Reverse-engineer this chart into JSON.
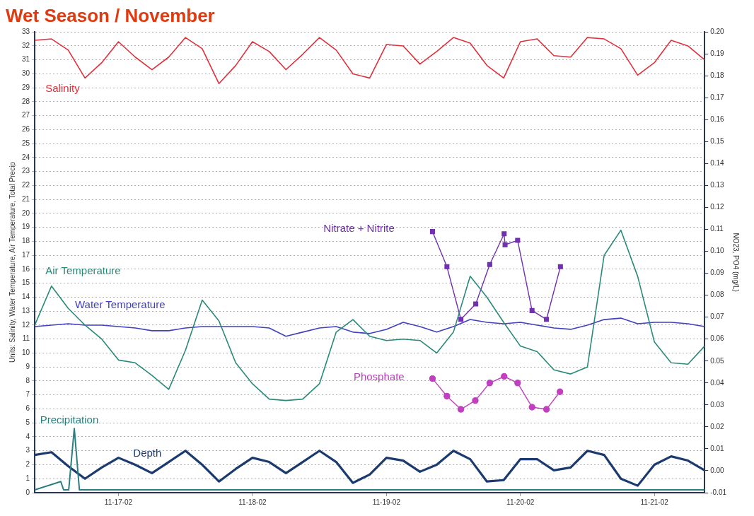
{
  "chart_data": {
    "type": "line",
    "title": "Wet Season / November",
    "ylabel": "Units: Salinity, Water Temperature, Air Temperature, Total Precip",
    "y2label": "NO23, PO4 (mg/L)",
    "x": [
      "--11-16T09:00",
      "--11-16T12:00",
      "--11-16T15:00",
      "--11-16T18:00",
      "--11-16T21:00",
      "--11-17T00:00",
      "--11-17T03:00",
      "--11-17T06:00",
      "--11-17T09:00",
      "--11-17T12:00",
      "--11-17T15:00",
      "--11-17T18:00",
      "--11-17T21:00",
      "--11-18T00:00",
      "--11-18T03:00",
      "--11-18T06:00",
      "--11-18T09:00",
      "--11-18T12:00",
      "--11-18T15:00",
      "--11-18T18:00",
      "--11-18T21:00",
      "--11-19T00:00",
      "--11-19T03:00",
      "--11-19T06:00",
      "--11-19T09:00",
      "--11-19T12:00",
      "--11-19T15:00",
      "--11-19T18:00",
      "--11-19T21:00",
      "--11-20T00:00",
      "--11-20T03:00",
      "--11-20T06:00",
      "--11-20T09:00",
      "--11-20T12:00",
      "--11-20T15:00",
      "--11-20T18:00",
      "--11-20T21:00",
      "--11-21T00:00",
      "--11-21T03:00",
      "--11-21T06:00",
      "--11-21T09:00"
    ],
    "xlim": [
      "--11-16T09:00",
      "--11-21T09:00"
    ],
    "xticks": [
      {
        "value": "--11-17",
        "label": "11-17-02"
      },
      {
        "value": "--11-18",
        "label": "11-18-02"
      },
      {
        "value": "--11-19",
        "label": "11-19-02"
      },
      {
        "value": "--11-20",
        "label": "11-20-02"
      },
      {
        "value": "--11-21",
        "label": "11-21-02"
      }
    ],
    "ylim": [
      0,
      33
    ],
    "yticks": [
      0,
      1,
      2,
      3,
      4,
      5,
      6,
      7,
      8,
      9,
      10,
      11,
      12,
      13,
      14,
      15,
      16,
      17,
      18,
      19,
      20,
      21,
      22,
      23,
      24,
      25,
      26,
      27,
      28,
      29,
      30,
      31,
      32,
      33
    ],
    "y2lim": [
      -0.01,
      0.2
    ],
    "y2ticks": [
      {
        "value": -0.01,
        "label": "-0.01"
      },
      {
        "value": 0,
        "label": "0.00"
      },
      {
        "value": 0.01,
        "label": "0.01"
      },
      {
        "value": 0.02,
        "label": "0.02"
      },
      {
        "value": 0.03,
        "label": "0.03"
      },
      {
        "value": 0.04,
        "label": "0.04"
      },
      {
        "value": 0.05,
        "label": "0.05"
      },
      {
        "value": 0.06,
        "label": "0.06"
      },
      {
        "value": 0.07,
        "label": "0.07"
      },
      {
        "value": 0.08,
        "label": "0.08"
      },
      {
        "value": 0.09,
        "label": "0.09"
      },
      {
        "value": 0.1,
        "label": "0.10"
      },
      {
        "value": 0.11,
        "label": "0.11"
      },
      {
        "value": 0.12,
        "label": "0.12"
      },
      {
        "value": 0.13,
        "label": "0.13"
      },
      {
        "value": 0.14,
        "label": "0.14"
      },
      {
        "value": 0.15,
        "label": "0.15"
      },
      {
        "value": 0.16,
        "label": "0.16"
      },
      {
        "value": 0.17,
        "label": "0.17"
      },
      {
        "value": 0.18,
        "label": "0.18"
      },
      {
        "value": 0.19,
        "label": "0.19"
      },
      {
        "value": 0.2,
        "label": "0.20"
      }
    ],
    "grid": "y",
    "legend": false,
    "series": [
      {
        "name": "Salinity",
        "color": "#e0303c",
        "marker": "none",
        "values": [
          32.4,
          32.5,
          31.7,
          29.7,
          30.8,
          32.3,
          31.2,
          30.3,
          31.2,
          32.6,
          31.8,
          29.3,
          30.6,
          32.3,
          31.6,
          30.3,
          31.4,
          32.6,
          31.7,
          30.0,
          29.7,
          32.1,
          32.0,
          30.7,
          31.6,
          32.6,
          32.2,
          30.6,
          29.7,
          32.3,
          32.5,
          31.3,
          31.2,
          32.6,
          32.5,
          31.8,
          29.9,
          30.8,
          32.4,
          32.0,
          31.0
        ]
      },
      {
        "name": "Air Temperature",
        "color": "#2a8a78",
        "marker": "none",
        "values": [
          12.0,
          14.8,
          13.2,
          12.0,
          11.0,
          9.5,
          9.3,
          8.4,
          7.4,
          10.2,
          13.8,
          12.3,
          9.3,
          7.8,
          6.7,
          6.6,
          6.7,
          7.8,
          11.5,
          12.4,
          11.2,
          10.9,
          11.0,
          10.9,
          10.0,
          11.5,
          15.5,
          14.0,
          12.2,
          10.5,
          10.1,
          8.8,
          8.5,
          9.0,
          17.0,
          18.8,
          15.5,
          10.8,
          9.3,
          9.2,
          10.5
        ]
      },
      {
        "name": "Water Temperature",
        "color": "#4040c0",
        "marker": "none",
        "values": [
          11.9,
          12.0,
          12.1,
          12.0,
          12.0,
          11.9,
          11.8,
          11.6,
          11.6,
          11.8,
          11.9,
          11.9,
          11.9,
          11.9,
          11.8,
          11.2,
          11.5,
          11.8,
          11.9,
          11.5,
          11.4,
          11.7,
          12.2,
          11.9,
          11.5,
          11.9,
          12.4,
          12.2,
          12.1,
          12.2,
          12.0,
          11.8,
          11.7,
          12.0,
          12.4,
          12.5,
          12.1,
          12.2,
          12.2,
          12.1,
          11.9
        ]
      },
      {
        "name": "Nitrate + Nitrite",
        "color": "#7030b0",
        "marker": "square",
        "axis": "y2",
        "x": [
          "--11-19T08:15",
          "--11-19T10:50",
          "--11-19T13:20",
          "--11-19T16:00",
          "--11-19T18:30",
          "--11-19T21:05",
          "--11-19T21:15",
          "--11-19T23:30",
          "--11-20T02:05",
          "--11-20T04:40",
          "--11-20T07:10"
        ],
        "values": [
          0.109,
          0.093,
          0.069,
          0.076,
          0.094,
          0.108,
          0.103,
          0.105,
          0.073,
          0.069,
          0.093
        ]
      },
      {
        "name": "Phosphate",
        "color": "#c040c0",
        "marker": "circle",
        "axis": "y2",
        "x": [
          "--11-19T08:15",
          "--11-19T10:50",
          "--11-19T13:20",
          "--11-19T15:55",
          "--11-19T18:30",
          "--11-19T21:05",
          "--11-19T23:30",
          "--11-20T02:05",
          "--11-20T04:40",
          "--11-20T07:05"
        ],
        "values": [
          0.042,
          0.034,
          0.028,
          0.032,
          0.04,
          0.043,
          0.04,
          0.029,
          0.028,
          0.036
        ]
      },
      {
        "name": "Precipitation",
        "color": "#2a8080",
        "marker": "none",
        "x": [
          "--11-16T09:00",
          "--11-16T13:40",
          "--11-16T14:10",
          "--11-16T15:05",
          "--11-16T16:05",
          "--11-16T17:00",
          "--11-21T09:00"
        ],
        "values": [
          0.2,
          0.8,
          0.2,
          0.2,
          4.6,
          0.2,
          0.2
        ]
      },
      {
        "name": "Depth",
        "color": "#1a3a70",
        "marker": "none",
        "values": [
          2.7,
          2.9,
          1.9,
          1.0,
          1.8,
          2.5,
          2.0,
          1.4,
          2.2,
          3.0,
          2.0,
          0.8,
          1.7,
          2.5,
          2.2,
          1.4,
          2.2,
          3.0,
          2.2,
          0.7,
          1.3,
          2.5,
          2.3,
          1.5,
          2.0,
          3.0,
          2.4,
          0.8,
          0.9,
          2.4,
          2.4,
          1.6,
          1.8,
          3.0,
          2.7,
          1.0,
          0.5,
          2.0,
          2.6,
          2.3,
          1.6
        ]
      }
    ]
  }
}
